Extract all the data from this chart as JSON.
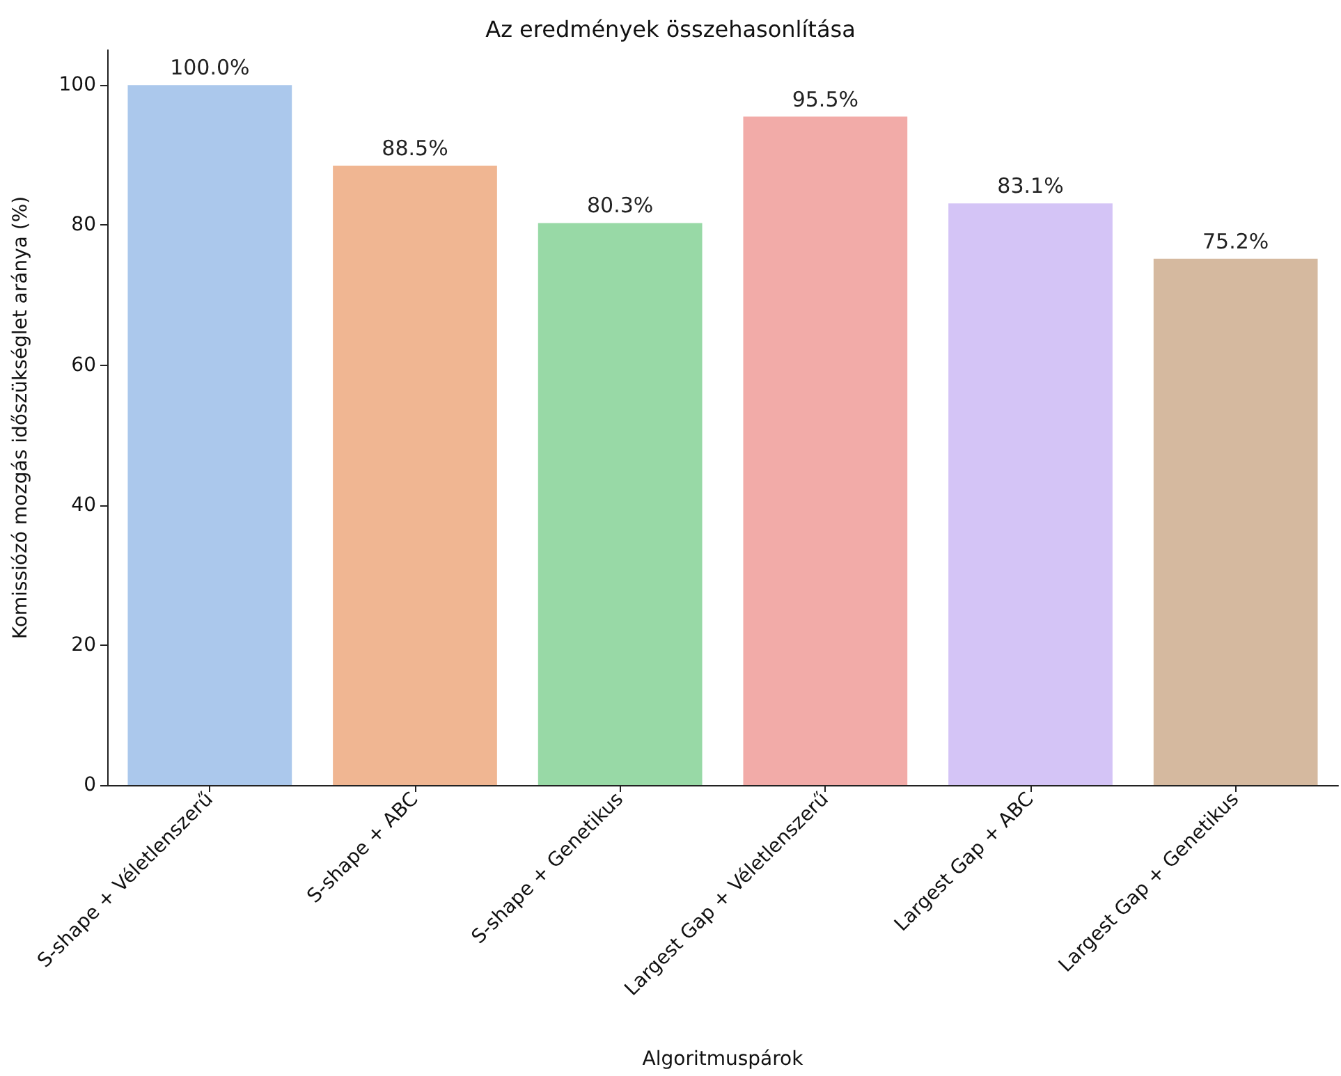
{
  "chart_data": {
    "type": "bar",
    "title": "Az eredmények összehasonlítása",
    "xlabel": "Algoritmuspárok",
    "ylabel": "Komissiózó mozgás időszükséglet aránya (%)",
    "categories": [
      "S-shape + Véletlenszerű",
      "S-shape + ABC",
      "S-shape + Genetikus",
      "Largest Gap + Véletlenszerű",
      "Largest Gap + ABC",
      "Largest Gap + Genetikus"
    ],
    "values": [
      100,
      88.5,
      80.3,
      95.5,
      83.1,
      75.2
    ],
    "value_labels": [
      "100.0%",
      "88.5%",
      "80.3%",
      "95.5%",
      "83.1%",
      "75.2%"
    ],
    "colors": [
      "#abc8ec",
      "#f0b692",
      "#98d9a6",
      "#f2aba8",
      "#d4c4f6",
      "#d5b99f"
    ],
    "ylim": [
      0,
      105
    ],
    "yticks": [
      0,
      20,
      40,
      60,
      80,
      100
    ],
    "grid": false
  }
}
